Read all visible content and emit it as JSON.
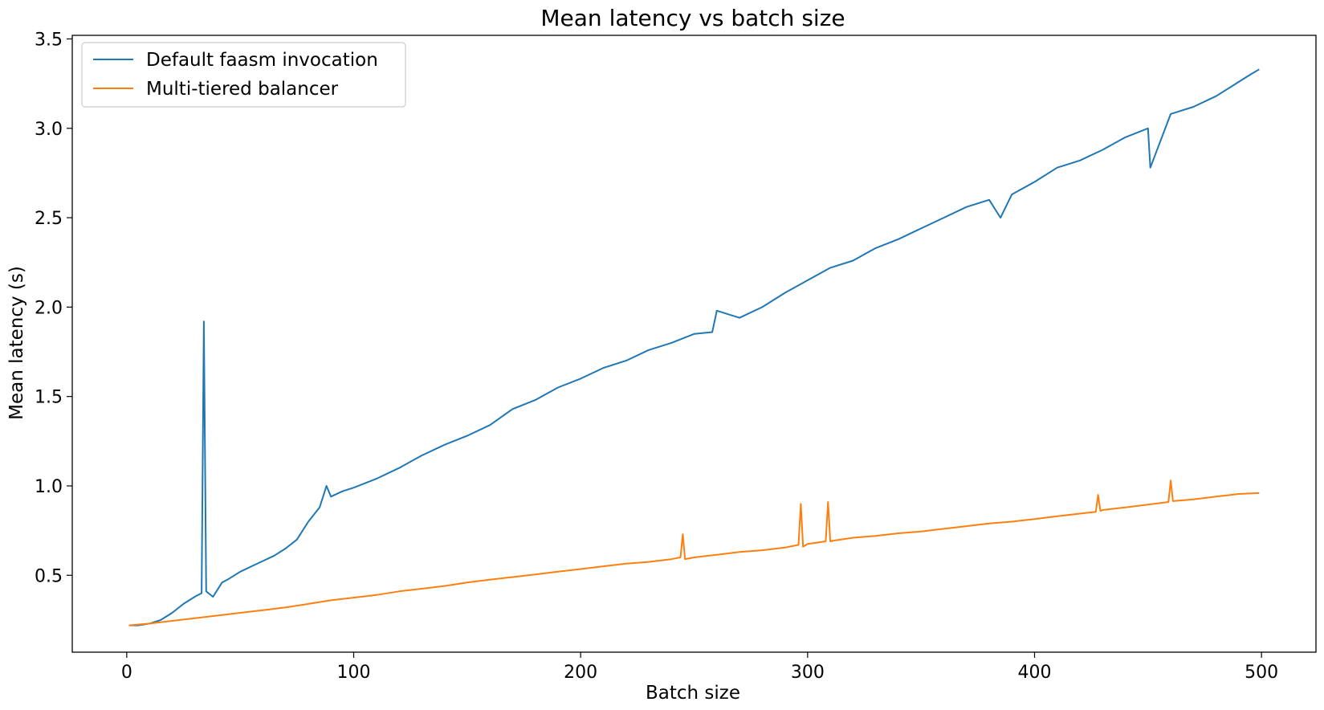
{
  "chart_data": {
    "type": "line",
    "title": "Mean latency vs batch size",
    "xlabel": "Batch size",
    "ylabel": "Mean latency (s)",
    "xlim": [
      -24,
      524
    ],
    "ylim": [
      0.07,
      3.52
    ],
    "xticks": [
      0,
      100,
      200,
      300,
      400,
      500
    ],
    "yticks": [
      0.5,
      1.0,
      1.5,
      2.0,
      2.5,
      3.0,
      3.5
    ],
    "xtick_labels": [
      "0",
      "100",
      "200",
      "300",
      "400",
      "500"
    ],
    "ytick_labels": [
      "0.5",
      "1.0",
      "1.5",
      "2.0",
      "2.5",
      "3.0",
      "3.5"
    ],
    "grid": false,
    "legend_position": "top-left",
    "series": [
      {
        "name": "Default faasm invocation",
        "color": "#1f77b4",
        "x": [
          1,
          5,
          10,
          15,
          20,
          25,
          30,
          33,
          34,
          35,
          38,
          42,
          45,
          50,
          55,
          60,
          65,
          70,
          75,
          80,
          85,
          88,
          90,
          95,
          100,
          110,
          120,
          130,
          140,
          150,
          160,
          170,
          180,
          190,
          200,
          210,
          220,
          230,
          240,
          250,
          258,
          260,
          270,
          280,
          290,
          300,
          310,
          320,
          330,
          340,
          350,
          360,
          370,
          380,
          385,
          390,
          400,
          410,
          420,
          430,
          440,
          450,
          451,
          460,
          470,
          480,
          490,
          495,
          499
        ],
        "y": [
          0.22,
          0.22,
          0.23,
          0.25,
          0.29,
          0.34,
          0.38,
          0.4,
          1.92,
          0.41,
          0.38,
          0.46,
          0.48,
          0.52,
          0.55,
          0.58,
          0.61,
          0.65,
          0.7,
          0.8,
          0.88,
          1.0,
          0.94,
          0.97,
          0.99,
          1.04,
          1.1,
          1.17,
          1.23,
          1.28,
          1.34,
          1.43,
          1.48,
          1.55,
          1.6,
          1.66,
          1.7,
          1.76,
          1.8,
          1.85,
          1.86,
          1.98,
          1.94,
          2.0,
          2.08,
          2.15,
          2.22,
          2.26,
          2.33,
          2.38,
          2.44,
          2.5,
          2.56,
          2.6,
          2.5,
          2.63,
          2.7,
          2.78,
          2.82,
          2.88,
          2.95,
          3.0,
          2.78,
          3.08,
          3.12,
          3.18,
          3.26,
          3.3,
          3.33
        ]
      },
      {
        "name": "Multi-tiered balancer",
        "color": "#ff7f0e",
        "x": [
          1,
          10,
          20,
          30,
          40,
          50,
          60,
          70,
          80,
          90,
          100,
          110,
          120,
          130,
          140,
          150,
          160,
          170,
          180,
          190,
          200,
          210,
          220,
          230,
          240,
          244,
          245,
          246,
          250,
          260,
          270,
          280,
          290,
          296,
          297,
          298,
          300,
          308,
          309,
          310,
          312,
          320,
          330,
          340,
          350,
          360,
          370,
          380,
          390,
          400,
          410,
          420,
          427,
          428,
          429,
          430,
          440,
          450,
          459,
          460,
          461,
          470,
          480,
          490,
          499
        ],
        "y": [
          0.22,
          0.23,
          0.245,
          0.26,
          0.275,
          0.29,
          0.305,
          0.32,
          0.34,
          0.36,
          0.375,
          0.39,
          0.41,
          0.425,
          0.44,
          0.46,
          0.475,
          0.49,
          0.505,
          0.52,
          0.535,
          0.55,
          0.565,
          0.575,
          0.59,
          0.6,
          0.73,
          0.59,
          0.6,
          0.615,
          0.63,
          0.64,
          0.655,
          0.67,
          0.9,
          0.66,
          0.675,
          0.69,
          0.91,
          0.69,
          0.695,
          0.71,
          0.72,
          0.735,
          0.745,
          0.76,
          0.775,
          0.79,
          0.8,
          0.815,
          0.83,
          0.845,
          0.855,
          0.95,
          0.86,
          0.865,
          0.88,
          0.895,
          0.91,
          1.03,
          0.915,
          0.925,
          0.94,
          0.955,
          0.96
        ]
      }
    ]
  }
}
